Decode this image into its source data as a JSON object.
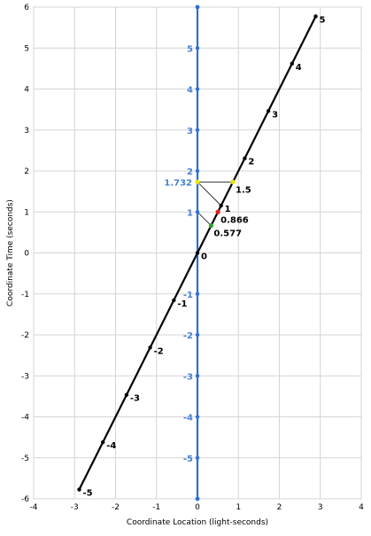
{
  "chart_data": {
    "type": "line",
    "title": "",
    "xlabel": "Coordinate Location (light-seconds)",
    "ylabel": "Coordinate Time (seconds)",
    "xlim": [
      -4,
      4
    ],
    "ylim": [
      -6,
      6
    ],
    "x_ticks": [
      "-4",
      "-3",
      "-2",
      "-1",
      "0",
      "1",
      "2",
      "3",
      "4"
    ],
    "y_ticks": [
      "-6",
      "-5",
      "-4",
      "-3",
      "-2",
      "-1",
      "0",
      "1",
      "2",
      "3",
      "4",
      "5",
      "6"
    ],
    "grid": true,
    "series": [
      {
        "color": "#2f6fd0",
        "x": [
          0,
          0,
          0,
          0,
          0,
          0,
          0,
          0,
          0,
          0,
          0,
          0,
          0
        ],
        "y": [
          -6,
          -5,
          -4,
          -3,
          -2,
          -1,
          0,
          1,
          2,
          3,
          4,
          5,
          6
        ],
        "point_labels": [
          "",
          "-5",
          "-4",
          "-3",
          "-2",
          "-1",
          "",
          "1",
          "2",
          "3",
          "4",
          "5",
          ""
        ]
      },
      {
        "color": "#000000",
        "x": [
          -2.887,
          -2.309,
          -1.732,
          -1.155,
          -0.577,
          0,
          0.577,
          1.155,
          1.732,
          2.309,
          2.887
        ],
        "y": [
          -5.774,
          -4.619,
          -3.464,
          -2.309,
          -1.155,
          0,
          1.155,
          2.309,
          3.464,
          4.619,
          5.774
        ],
        "point_labels": [
          "-5",
          "-4",
          "-3",
          "-2",
          "-1",
          "0",
          "1",
          "2",
          "3",
          "4",
          "5"
        ]
      }
    ],
    "annotations": [
      {
        "label": "1.732",
        "x": 0,
        "y": 1.732,
        "color": "#e6e600"
      },
      {
        "label": "1.5",
        "x": 0.866,
        "y": 1.732,
        "color": "#e6e600"
      },
      {
        "label": "0.866",
        "x": 0.5,
        "y": 1.0,
        "color": "#e02020"
      },
      {
        "label": "0.577",
        "x": 0.333,
        "y": 0.667,
        "color": "#30a030"
      }
    ],
    "annotation_lines": [
      {
        "x": [
          0,
          0.577
        ],
        "y": [
          1.732,
          1.155
        ]
      },
      {
        "x": [
          0,
          0.333
        ],
        "y": [
          1.0,
          0.667
        ]
      },
      {
        "x": [
          0,
          0.866
        ],
        "y": [
          1.732,
          1.732
        ]
      }
    ]
  }
}
